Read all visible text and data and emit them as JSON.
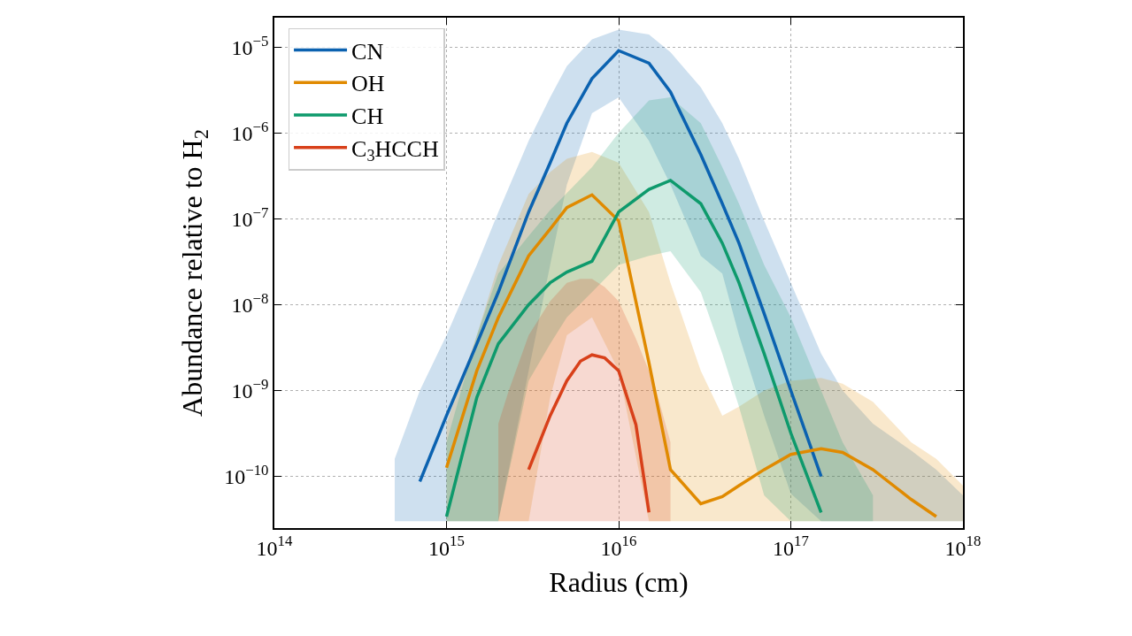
{
  "chart_data": {
    "type": "line",
    "xlabel": "Radius (cm)",
    "ylabel": "Abundance relative to H$_{2}$",
    "log": "xy",
    "grid": true,
    "legend": "top left",
    "line_style": "solid",
    "marker": "none",
    "xlim": [
      100000000000000.0,
      1e+18
    ],
    "ylim": [
      2.5e-11,
      2.2e-05
    ],
    "xticks": [
      {
        "value": 100000000000000.0,
        "label": "10$^{14}$"
      },
      {
        "value": 1000000000000000.0,
        "label": "10$^{15}$"
      },
      {
        "value": 1e+16,
        "label": "10$^{16}$"
      },
      {
        "value": 1e+17,
        "label": "10$^{17}$"
      },
      {
        "value": 1e+18,
        "label": "10$^{18}$"
      }
    ],
    "yticks": [
      {
        "value": 1e-10,
        "label": "10$^{−10}$"
      },
      {
        "value": 1e-09,
        "label": "10$^{−9}$"
      },
      {
        "value": 1e-08,
        "label": "10$^{−8}$"
      },
      {
        "value": 1e-07,
        "label": "10$^{−7}$"
      },
      {
        "value": 1e-06,
        "label": "10$^{−6}$"
      },
      {
        "value": 1e-05,
        "label": "10$^{−5}$"
      }
    ],
    "series": [
      {
        "name": "CN",
        "color": "#0b62b0",
        "x": [
          500000000000000.0,
          700000000000000.0,
          1000000000000000.0,
          1500000000000000.0,
          2000000000000000.0,
          3000000000000000.0,
          4000000000000000.0,
          5000000000000000.0,
          7000000000000000.0,
          1e+16,
          1.5e+16,
          2e+16,
          3e+16,
          4e+16,
          5e+16,
          7e+16,
          1e+17,
          1.5e+17,
          2e+17,
          3e+17,
          5e+17,
          7e+17,
          1e+18
        ],
        "values": [
          null,
          8.7e-11,
          5.1e-10,
          3.5e-09,
          1.4e-08,
          1.2e-07,
          4.5e-07,
          1.3e-06,
          4.3e-06,
          9.1e-06,
          6.5e-06,
          3e-06,
          5.6e-07,
          1.5e-07,
          5.2e-08,
          7.9e-09,
          1e-09,
          1e-10,
          null,
          null,
          null,
          null,
          null
        ],
        "upper": [
          1.6e-10,
          1e-09,
          4.4e-09,
          2.9e-08,
          1.2e-07,
          8.1e-07,
          2.6e-06,
          6e-06,
          1.23e-05,
          1.6e-05,
          1.4e-05,
          8.7e-06,
          3.4e-06,
          1.3e-06,
          5e-07,
          9.5e-08,
          1.8e-08,
          2.7e-09,
          1e-09,
          4.1e-10,
          2e-10,
          1.2e-10,
          6e-11
        ],
        "lower": [
          3e-11,
          3e-11,
          3e-11,
          3e-11,
          3e-11,
          1.7e-09,
          2.9e-08,
          2.5e-07,
          1.7e-06,
          2.6e-06,
          8.1e-07,
          2.5e-07,
          3.7e-08,
          2.3e-08,
          4.4e-09,
          5.1e-10,
          6.3e-11,
          3e-11,
          3e-11,
          3e-11,
          3e-11,
          3e-11,
          3e-11
        ]
      },
      {
        "name": "OH",
        "color": "#e08a00",
        "x": [
          1000000000000000.0,
          1500000000000000.0,
          2000000000000000.0,
          3000000000000000.0,
          4000000000000000.0,
          5000000000000000.0,
          7000000000000000.0,
          1e+16,
          1.5e+16,
          2e+16,
          3e+16,
          4e+16,
          5e+16,
          7e+16,
          1e+17,
          1.5e+17,
          2e+17,
          3e+17,
          5e+17,
          7e+17,
          1e+18
        ],
        "values": [
          1.26e-10,
          1.7e-09,
          7.1e-09,
          3.7e-08,
          7.6e-08,
          1.35e-07,
          1.9e-07,
          9.5e-08,
          2.1e-09,
          1.2e-10,
          4.8e-11,
          5.8e-11,
          7.8e-11,
          1.2e-10,
          1.8e-10,
          2.1e-10,
          1.9e-10,
          1.2e-10,
          5.4e-11,
          3.4e-11,
          null
        ],
        "upper": [
          4.1e-10,
          4.4e-09,
          2.9e-08,
          1.95e-07,
          3.5e-07,
          5e-07,
          6e-07,
          4.5e-07,
          1.2e-07,
          1.8e-08,
          1.7e-09,
          5.1e-10,
          6.5e-10,
          1e-09,
          1.3e-09,
          1.4e-09,
          1.2e-09,
          7.4e-10,
          2.5e-10,
          1.6e-10,
          7.8e-11
        ],
        "lower": [
          3e-11,
          3e-11,
          3e-11,
          3e-11,
          8.3e-10,
          4.4e-09,
          7.1e-09,
          1.7e-09,
          3e-11,
          3e-11,
          3e-11,
          3e-11,
          3e-11,
          3e-11,
          3e-11,
          3e-11,
          3e-11,
          3e-11,
          3e-11,
          3e-11,
          3e-11
        ]
      },
      {
        "name": "CH",
        "color": "#0e9a6c",
        "x": [
          1000000000000000.0,
          1500000000000000.0,
          2000000000000000.0,
          3000000000000000.0,
          4000000000000000.0,
          5000000000000000.0,
          7000000000000000.0,
          1e+16,
          1.5e+16,
          2e+16,
          3e+16,
          4e+16,
          5e+16,
          7e+16,
          1e+17,
          1.5e+17,
          2e+17,
          3e+17
        ],
        "values": [
          3.4e-11,
          8.3e-10,
          3.5e-09,
          1e-08,
          1.8e-08,
          2.4e-08,
          3.2e-08,
          1.2e-07,
          2.2e-07,
          2.8e-07,
          1.5e-07,
          5.2e-08,
          1.8e-08,
          2.7e-09,
          3.2e-10,
          3.8e-11,
          null,
          null
        ],
        "upper": [
          2.5e-10,
          4.4e-09,
          2.3e-08,
          6.3e-08,
          1.26e-07,
          2e-07,
          4e-07,
          1e-06,
          2.4e-06,
          2.6e-06,
          1.3e-06,
          4e-07,
          1.5e-07,
          2.9e-08,
          7.1e-09,
          1e-09,
          2.5e-10,
          6e-11
        ],
        "lower": [
          3e-11,
          3e-11,
          3e-11,
          1.3e-09,
          3.5e-09,
          7.1e-09,
          1.4e-08,
          2.9e-08,
          3.7e-08,
          4.2e-08,
          1.4e-08,
          2.7e-09,
          6.5e-10,
          6e-11,
          3e-11,
          3e-11,
          3e-11,
          3e-11
        ]
      },
      {
        "name": "C$_{3}$HCCH",
        "color": "#d8401a",
        "x": [
          2000000000000000.0,
          2300000000000000.0,
          3000000000000000.0,
          4000000000000000.0,
          5000000000000000.0,
          6000000000000000.0,
          7000000000000000.0,
          8300000000000000.0,
          1e+16,
          1.26e+16,
          1.5e+16,
          1.6e+16,
          2e+16
        ],
        "values": [
          null,
          null,
          1.2e-10,
          5.1e-10,
          1.3e-09,
          2.2e-09,
          2.6e-09,
          2.4e-09,
          1.7e-09,
          4e-10,
          3.8e-11,
          null,
          null
        ],
        "upper": [
          4.1e-10,
          1e-09,
          4.4e-09,
          1.1e-08,
          1.8e-08,
          2e-08,
          2e-08,
          1.6e-08,
          1.1e-08,
          4e-09,
          1.7e-09,
          1.26e-09,
          2.5e-10
        ],
        "lower": [
          3e-11,
          3e-11,
          3e-11,
          3e-11,
          3e-11,
          3e-11,
          3e-11,
          3e-11,
          3e-11,
          3e-11,
          3e-11,
          3e-11,
          3e-11
        ]
      }
    ]
  }
}
